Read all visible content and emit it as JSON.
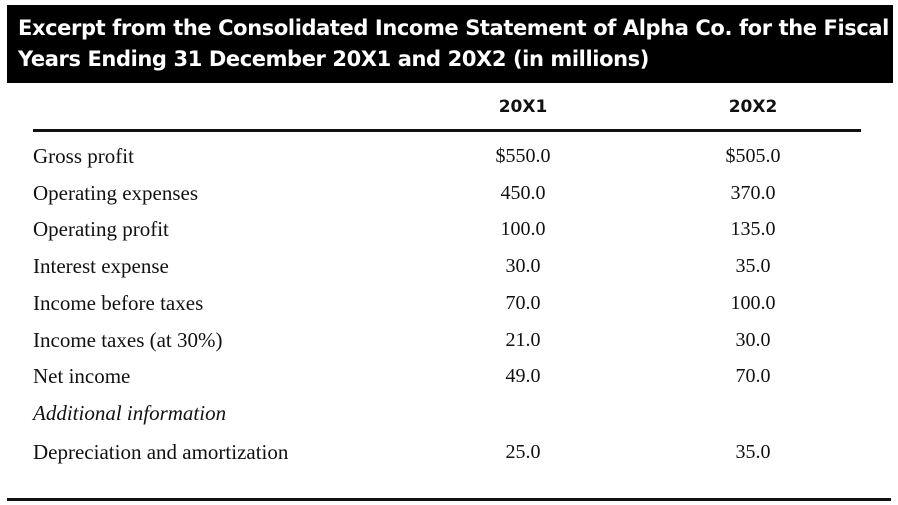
{
  "title": {
    "line1": "Excerpt from the Consolidated Income Statement of Alpha Co. for the Fiscal",
    "line2": "Years Ending 31 December 20X1 and 20X2 (in millions)"
  },
  "columns": [
    "20X1",
    "20X2"
  ],
  "rows": [
    {
      "label": "Gross profit",
      "v1": "$550.0",
      "v2": "$505.0"
    },
    {
      "label": "Operating expenses",
      "v1": "450.0",
      "v2": "370.0"
    },
    {
      "label": "Operating profit",
      "v1": "100.0",
      "v2": "135.0"
    },
    {
      "label": "Interest expense",
      "v1": "30.0",
      "v2": "35.0"
    },
    {
      "label": "Income before taxes",
      "v1": "70.0",
      "v2": "100.0"
    },
    {
      "label": "Income taxes (at 30%)",
      "v1": "21.0",
      "v2": "30.0"
    },
    {
      "label": "Net income",
      "v1": "49.0",
      "v2": "70.0"
    }
  ],
  "additional": {
    "heading": "Additional information",
    "rows": [
      {
        "label": "Depreciation and amortization",
        "v1": "25.0",
        "v2": "35.0"
      }
    ]
  }
}
